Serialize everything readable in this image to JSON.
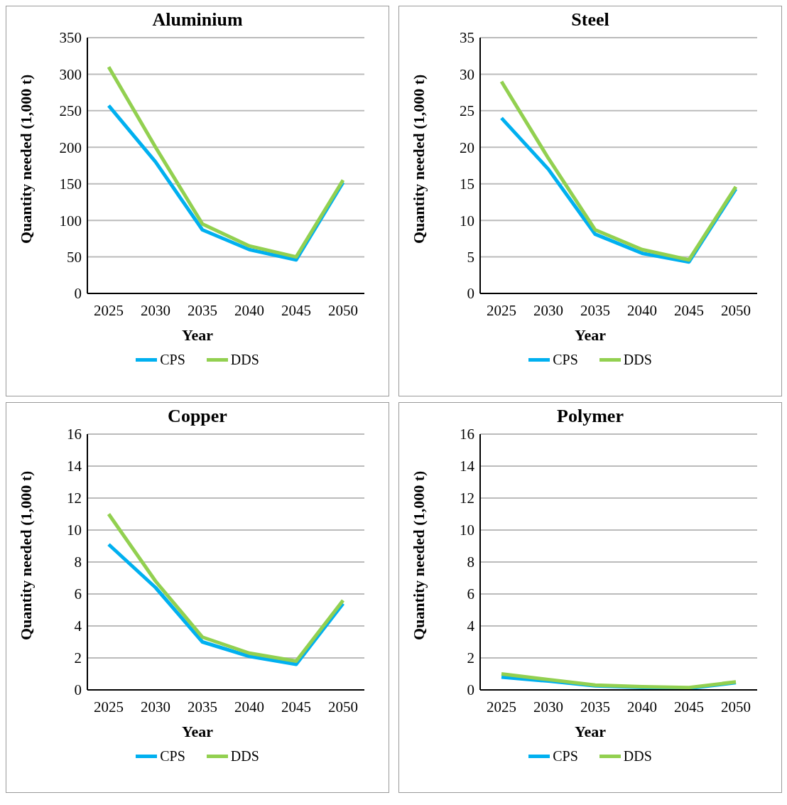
{
  "chart_data": [
    {
      "type": "line",
      "title": "Aluminium",
      "xlabel": "Year",
      "ylabel": "Quantity needed (1,000 t)",
      "categories": [
        "2025",
        "2030",
        "2035",
        "2040",
        "2045",
        "2050"
      ],
      "series": [
        {
          "name": "CPS",
          "color": "#00b0f0",
          "values": [
            257,
            180,
            87,
            60,
            46,
            152
          ]
        },
        {
          "name": "DDS",
          "color": "#92d050",
          "values": [
            310,
            200,
            95,
            65,
            50,
            155
          ]
        }
      ],
      "ylim": [
        0,
        350
      ],
      "yticks": [
        0,
        50,
        100,
        150,
        200,
        250,
        300,
        350
      ],
      "grid": "y",
      "legend": "bottom",
      "marker": "none",
      "line_style": "solid"
    },
    {
      "type": "line",
      "title": "Steel",
      "xlabel": "Year",
      "ylabel": "Quantity needed (1,000 t)",
      "categories": [
        "2025",
        "2030",
        "2035",
        "2040",
        "2045",
        "2050"
      ],
      "series": [
        {
          "name": "CPS",
          "color": "#00b0f0",
          "values": [
            24,
            17,
            8.1,
            5.5,
            4.3,
            14.3
          ]
        },
        {
          "name": "DDS",
          "color": "#92d050",
          "values": [
            29,
            18.5,
            8.7,
            6,
            4.6,
            14.6
          ]
        }
      ],
      "ylim": [
        0,
        35
      ],
      "yticks": [
        0,
        5,
        10,
        15,
        20,
        25,
        30,
        35
      ],
      "grid": "y",
      "legend": "bottom",
      "marker": "none",
      "line_style": "solid"
    },
    {
      "type": "line",
      "title": "Copper",
      "xlabel": "Year",
      "ylabel": "Quantity needed (1,000 t)",
      "categories": [
        "2025",
        "2030",
        "2035",
        "2040",
        "2045",
        "2050"
      ],
      "series": [
        {
          "name": "CPS",
          "color": "#00b0f0",
          "values": [
            9.1,
            6.4,
            3.0,
            2.1,
            1.6,
            5.4
          ]
        },
        {
          "name": "DDS",
          "color": "#92d050",
          "values": [
            11,
            6.8,
            3.3,
            2.3,
            1.8,
            5.6
          ]
        }
      ],
      "ylim": [
        0,
        16
      ],
      "yticks": [
        0,
        2,
        4,
        6,
        8,
        10,
        12,
        14,
        16
      ],
      "grid": "y",
      "legend": "bottom",
      "marker": "none",
      "line_style": "solid"
    },
    {
      "type": "line",
      "title": "Polymer",
      "xlabel": "Year",
      "ylabel": "Quantity needed (1,000 t)",
      "categories": [
        "2025",
        "2030",
        "2035",
        "2040",
        "2045",
        "2050"
      ],
      "series": [
        {
          "name": "CPS",
          "color": "#00b0f0",
          "values": [
            0.8,
            0.55,
            0.25,
            0.15,
            0.1,
            0.45
          ]
        },
        {
          "name": "DDS",
          "color": "#92d050",
          "values": [
            1.0,
            0.65,
            0.3,
            0.2,
            0.15,
            0.5
          ]
        }
      ],
      "ylim": [
        0,
        16
      ],
      "yticks": [
        0,
        2,
        4,
        6,
        8,
        10,
        12,
        14,
        16
      ],
      "grid": "y",
      "legend": "bottom",
      "marker": "none",
      "line_style": "solid"
    }
  ]
}
